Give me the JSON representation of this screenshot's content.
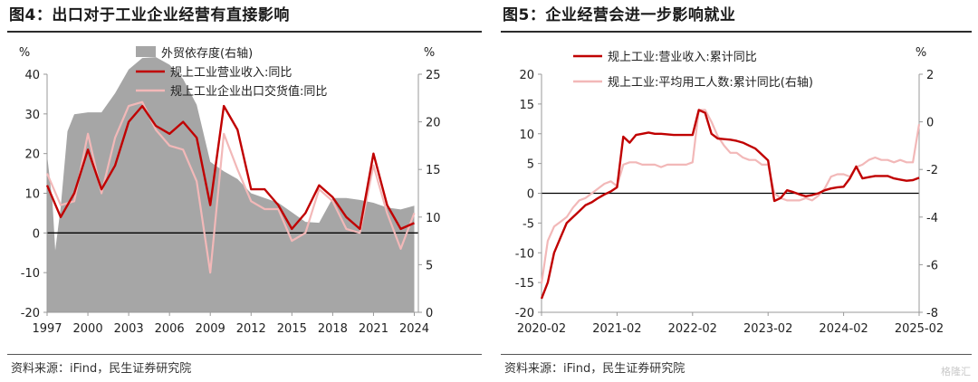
{
  "left": {
    "title": "图4：出口对于工业企业经营有直接影响",
    "source": "资料来源：iFind，民生证券研究院",
    "chart_data": {
      "type": "line",
      "left_axis_unit": "%",
      "right_axis_unit": "%",
      "ylim": [
        -20,
        40
      ],
      "yticks": [
        -20,
        -10,
        0,
        10,
        20,
        30,
        40
      ],
      "y2lim": [
        0,
        25
      ],
      "y2ticks": [
        0,
        5,
        10,
        15,
        20,
        25
      ],
      "xlim": [
        1997,
        2024.3
      ],
      "xticks": [
        1997,
        2000,
        2003,
        2006,
        2009,
        2012,
        2015,
        2018,
        2021,
        2024
      ],
      "legend_position": "top-center",
      "series": [
        {
          "name": "外贸依存度(右轴)",
          "kind": "area",
          "axis": "right",
          "color": "#a6a6a6",
          "x": [
            1997,
            1997.4,
            1997.6,
            1998,
            1998.5,
            1999,
            2000,
            2001,
            2002,
            2003,
            2004,
            2005,
            2006,
            2007,
            2008,
            2009,
            2010,
            2011,
            2012,
            2013,
            2014,
            2015,
            2016,
            2017,
            2018,
            2019,
            2020,
            2021,
            2022,
            2023,
            2024
          ],
          "values": [
            16.5,
            11.5,
            6.5,
            11.0,
            19.0,
            20.8,
            21.0,
            21.0,
            23.0,
            25.5,
            26.7,
            26.8,
            26.0,
            24.5,
            21.8,
            15.8,
            14.8,
            14.0,
            12.5,
            12.0,
            11.5,
            10.5,
            9.5,
            9.4,
            12.0,
            12.0,
            11.8,
            11.5,
            11.0,
            10.8,
            11.2
          ]
        },
        {
          "name": "规上工业营业收入:同比",
          "kind": "line",
          "axis": "left",
          "color": "#c00000",
          "x": [
            1997,
            1998,
            1999,
            2000,
            2001,
            2002,
            2003,
            2004,
            2005,
            2006,
            2007,
            2008,
            2009,
            2010,
            2011,
            2012,
            2013,
            2014,
            2015,
            2016,
            2017,
            2018,
            2019,
            2020,
            2021,
            2022,
            2023,
            2024
          ],
          "values": [
            12,
            4,
            10,
            21,
            11,
            17,
            28,
            32,
            27,
            25,
            28,
            24,
            7,
            32,
            26,
            11,
            11,
            7,
            1,
            5,
            12,
            9,
            4,
            1,
            20,
            7,
            1,
            2.5
          ]
        },
        {
          "name": "规上工业企业出口交货值:同比",
          "kind": "line",
          "axis": "left",
          "color": "#f2b8b8",
          "x": [
            1997,
            1998,
            1999,
            2000,
            2001,
            2002,
            2003,
            2004,
            2005,
            2006,
            2007,
            2008,
            2009,
            2010,
            2011,
            2012,
            2013,
            2014,
            2015,
            2016,
            2017,
            2018,
            2019,
            2020,
            2021,
            2022,
            2023,
            2024
          ],
          "values": [
            15,
            7,
            8,
            25,
            10,
            24,
            32,
            33,
            26,
            22,
            21,
            13,
            -10,
            25,
            16,
            8,
            6,
            6,
            -2,
            0,
            11,
            8,
            1,
            0,
            17,
            5,
            -4,
            5
          ]
        }
      ]
    }
  },
  "right": {
    "title": "图5：企业经营会进一步影响就业",
    "source": "资料来源：iFind，民生证券研究院",
    "chart_data": {
      "type": "line",
      "left_axis_unit": "",
      "right_axis_unit": "%",
      "ylim": [
        -20,
        20
      ],
      "yticks": [
        -20,
        -15,
        -10,
        -5,
        0,
        5,
        10,
        15,
        20
      ],
      "y2lim": [
        -8,
        2
      ],
      "y2ticks": [
        -8,
        -6,
        -4,
        -2,
        0,
        2
      ],
      "xlim": [
        2020.0,
        2025.0
      ],
      "xticks": [
        2020.0,
        2021.0,
        2022.0,
        2023.0,
        2024.0,
        2025.0
      ],
      "xtick_labels": [
        "2020-02",
        "2021-02",
        "2022-02",
        "2023-02",
        "2024-02",
        "2025-02"
      ],
      "legend_position": "top-left",
      "series": [
        {
          "name": "规上工业:营业收入:累计同比",
          "kind": "line",
          "axis": "left",
          "color": "#c00000",
          "x": [
            2020.0,
            2020.083,
            2020.167,
            2020.25,
            2020.333,
            2020.417,
            2020.5,
            2020.583,
            2020.667,
            2020.75,
            2020.833,
            2020.917,
            2021.0,
            2021.083,
            2021.167,
            2021.25,
            2021.333,
            2021.417,
            2021.5,
            2021.583,
            2021.667,
            2021.75,
            2021.833,
            2021.917,
            2022.0,
            2022.083,
            2022.167,
            2022.25,
            2022.333,
            2022.417,
            2022.5,
            2022.583,
            2022.667,
            2022.75,
            2022.833,
            2022.917,
            2023.0,
            2023.083,
            2023.167,
            2023.25,
            2023.333,
            2023.417,
            2023.5,
            2023.583,
            2023.667,
            2023.75,
            2023.833,
            2023.917,
            2024.0,
            2024.083,
            2024.167,
            2024.25,
            2024.333,
            2024.417,
            2024.5,
            2024.583,
            2024.667,
            2024.75,
            2024.833,
            2024.917,
            2025.0
          ],
          "values": [
            -17.7,
            -15.0,
            -10.0,
            -7.5,
            -5.0,
            -4.0,
            -3.0,
            -2.0,
            -1.5,
            -0.8,
            -0.2,
            0.3,
            1.0,
            9.5,
            8.5,
            9.8,
            10.0,
            10.2,
            10.0,
            10.0,
            9.9,
            9.8,
            9.8,
            9.8,
            9.8,
            14.0,
            13.5,
            10.0,
            9.2,
            9.1,
            9.0,
            8.8,
            8.5,
            8.0,
            7.5,
            6.5,
            5.5,
            -1.3,
            -0.8,
            0.5,
            0.2,
            -0.2,
            -0.5,
            -0.3,
            0.0,
            0.5,
            0.8,
            1.0,
            1.1,
            2.5,
            4.5,
            2.5,
            2.7,
            2.9,
            2.9,
            2.9,
            2.5,
            2.3,
            2.1,
            2.2,
            2.6
          ]
        },
        {
          "name": "规上工业:平均用工人数:累计同比(右轴)",
          "kind": "line",
          "axis": "right",
          "color": "#f2b8b8",
          "x": [
            2020.0,
            2020.083,
            2020.167,
            2020.25,
            2020.333,
            2020.417,
            2020.5,
            2020.583,
            2020.667,
            2020.75,
            2020.833,
            2020.917,
            2021.0,
            2021.083,
            2021.167,
            2021.25,
            2021.333,
            2021.417,
            2021.5,
            2021.583,
            2021.667,
            2021.75,
            2021.833,
            2021.917,
            2022.0,
            2022.083,
            2022.167,
            2022.25,
            2022.333,
            2022.417,
            2022.5,
            2022.583,
            2022.667,
            2022.75,
            2022.833,
            2022.917,
            2023.0,
            2023.083,
            2023.167,
            2023.25,
            2023.333,
            2023.417,
            2023.5,
            2023.583,
            2023.667,
            2023.75,
            2023.833,
            2023.917,
            2024.0,
            2024.083,
            2024.167,
            2024.25,
            2024.333,
            2024.417,
            2024.5,
            2024.583,
            2024.667,
            2024.75,
            2024.833,
            2024.917,
            2025.0
          ],
          "values": [
            -6.8,
            -5.0,
            -4.4,
            -4.2,
            -4.0,
            -3.6,
            -3.3,
            -3.2,
            -3.0,
            -2.8,
            -2.6,
            -2.5,
            -2.7,
            -1.8,
            -1.7,
            -1.7,
            -1.8,
            -1.8,
            -1.8,
            -1.9,
            -1.8,
            -1.8,
            -1.8,
            -1.8,
            -1.7,
            0.5,
            0.5,
            0.0,
            -0.6,
            -1.0,
            -1.3,
            -1.3,
            -1.5,
            -1.6,
            -1.6,
            -1.8,
            -1.8,
            -3.0,
            -3.2,
            -3.3,
            -3.3,
            -3.3,
            -3.2,
            -3.3,
            -3.1,
            -2.8,
            -2.3,
            -2.2,
            -2.2,
            -2.3,
            -1.9,
            -1.8,
            -1.6,
            -1.5,
            -1.6,
            -1.6,
            -1.7,
            -1.6,
            -1.7,
            -1.7,
            -0.1
          ]
        }
      ]
    }
  },
  "watermark": "格隆汇"
}
